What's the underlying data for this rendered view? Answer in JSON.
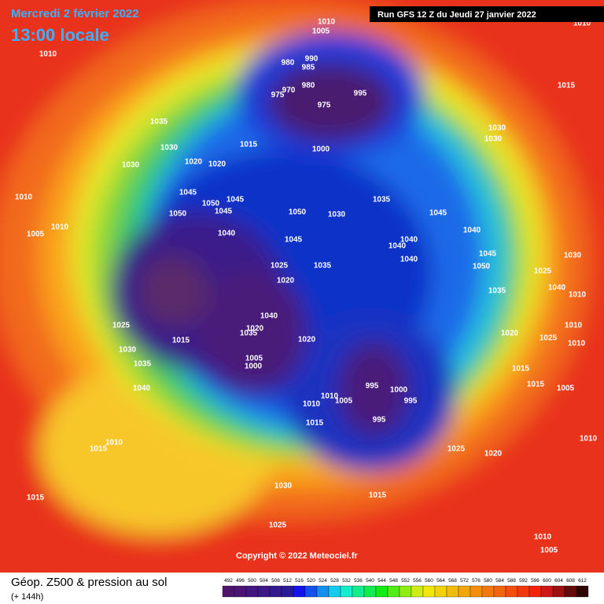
{
  "header": {
    "date": "Mercredi 2 février 2022",
    "time": "13:00 locale",
    "run": "Run GFS 12 Z du Jeudi 27 janvier 2022"
  },
  "copyright": "Copyright © 2022 Meteociel.fr",
  "legend": {
    "title": "Géop. Z500 & pression au sol",
    "lead": "(+ 144h)",
    "scale": [
      492,
      496,
      500,
      504,
      508,
      512,
      516,
      520,
      524,
      528,
      532,
      536,
      540,
      544,
      548,
      552,
      556,
      560,
      564,
      568,
      572,
      576,
      580,
      584,
      588,
      592,
      596,
      600,
      604,
      608,
      612
    ]
  },
  "isobar_labels": [
    1010,
    1005,
    990,
    980,
    985,
    980,
    970,
    975,
    975,
    995,
    1000,
    1015,
    1035,
    1030,
    1030,
    1020,
    1020,
    1010,
    1010,
    1005,
    1010,
    1045,
    1050,
    1045,
    1050,
    1045,
    1040,
    1050,
    1030,
    1035,
    1045,
    1045,
    1040,
    1040,
    1040,
    1040,
    1045,
    1050,
    1035,
    1025,
    1020,
    1015,
    1030,
    1030,
    1010,
    1025,
    1030,
    1035,
    1040,
    1010,
    1040,
    1020,
    1035,
    1020,
    1005,
    1000,
    1025,
    1015,
    1030,
    1035,
    1040,
    995,
    1000,
    995,
    1005,
    1010,
    1010,
    1015,
    995,
    1020,
    1025,
    1010,
    1010,
    1015,
    1015,
    1005,
    1025,
    1020,
    1015,
    1030,
    1025,
    1015,
    1015,
    1010,
    1010,
    1005,
    1010
  ]
}
